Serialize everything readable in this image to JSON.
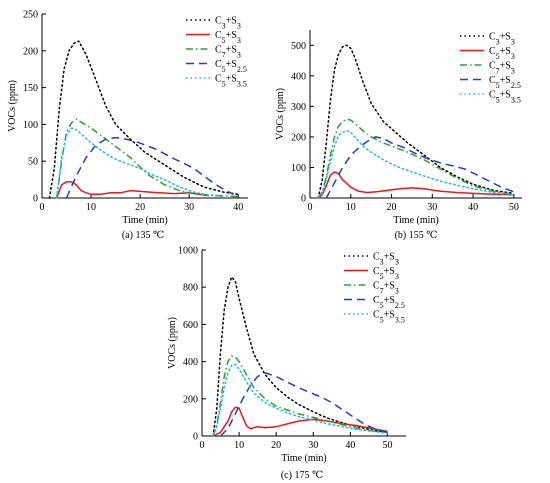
{
  "figure": {
    "panels": [
      {
        "caption": "(a) 135 ℃",
        "ylabel": "VOCs (ppm)",
        "xlabel": "Time (min)",
        "xlim": [
          0,
          42
        ],
        "ylim": [
          0,
          250
        ],
        "xticks": [
          0,
          10,
          20,
          30,
          40
        ],
        "yticks": [
          0,
          50,
          100,
          150,
          200,
          250
        ],
        "legend_position": "top-right"
      },
      {
        "caption": "(b) 155 ℃",
        "ylabel": "VOCs (ppm)",
        "xlabel": "Time (min)",
        "xlim": [
          0,
          52
        ],
        "ylim": [
          0,
          550
        ],
        "xticks": [
          0,
          10,
          20,
          30,
          40,
          50
        ],
        "yticks": [
          0,
          100,
          200,
          300,
          400,
          500
        ],
        "legend_position": "top-right"
      },
      {
        "caption": "(c) 175 ℃",
        "ylabel": "VOCs (ppm)",
        "xlabel": "Time (min)",
        "xlim": [
          0,
          55
        ],
        "ylim": [
          0,
          1000
        ],
        "xticks": [
          0,
          10,
          20,
          30,
          40,
          50
        ],
        "yticks": [
          0,
          200,
          400,
          600,
          800,
          1000
        ],
        "legend_position": "top-right"
      }
    ]
  },
  "chart_data": [
    {
      "type": "line",
      "title": "(a) 135 ℃",
      "xlabel": "Time (min)",
      "ylabel": "VOCs (ppm)",
      "xlim": [
        0,
        42
      ],
      "ylim": [
        0,
        250
      ],
      "series": [
        {
          "name": "C3+S3",
          "color": "#000000",
          "style": "dotted",
          "x": [
            1.5,
            2.5,
            3.5,
            4.5,
            5.5,
            6.5,
            7.5,
            9,
            11,
            13,
            15,
            18,
            21,
            25,
            29,
            33,
            37,
            40
          ],
          "y": [
            0,
            40,
            120,
            175,
            200,
            210,
            213,
            195,
            160,
            125,
            100,
            80,
            62,
            45,
            28,
            15,
            8,
            5
          ]
        },
        {
          "name": "C5+S3",
          "color": "#e41a1c",
          "style": "solid",
          "x": [
            3,
            4,
            5,
            6,
            7,
            8,
            9,
            10,
            12,
            14,
            16,
            18,
            20,
            22,
            24,
            27,
            30,
            32,
            34
          ],
          "y": [
            0,
            18,
            22,
            22,
            18,
            10,
            7,
            5,
            5,
            7,
            7,
            10,
            9,
            8,
            7,
            6,
            7,
            5,
            3
          ]
        },
        {
          "name": "C7+S3",
          "color": "#2ca02c",
          "style": "dashdot",
          "x": [
            3,
            4,
            5,
            6,
            7,
            8,
            10,
            12,
            14,
            16,
            18,
            20,
            22,
            25,
            28,
            31,
            34,
            37,
            40
          ],
          "y": [
            0,
            50,
            90,
            102,
            107,
            103,
            95,
            85,
            75,
            65,
            55,
            42,
            30,
            18,
            10,
            6,
            4,
            3,
            2
          ]
        },
        {
          "name": "C5+S2.5",
          "color": "#1f3fbf",
          "style": "dashed",
          "x": [
            5,
            7,
            9,
            11,
            13,
            15,
            17,
            19,
            21,
            23,
            25,
            27,
            29,
            31,
            33,
            35,
            37,
            39
          ],
          "y": [
            0,
            30,
            55,
            72,
            80,
            82,
            80,
            77,
            72,
            67,
            60,
            53,
            47,
            40,
            30,
            20,
            12,
            5
          ]
        },
        {
          "name": "C5+S3.5",
          "color": "#21b6ea",
          "style": "dotted",
          "x": [
            3,
            4,
            5,
            6,
            7,
            8,
            10,
            12,
            14,
            16,
            18,
            20,
            22,
            25,
            28,
            31,
            34,
            37
          ],
          "y": [
            0,
            55,
            85,
            95,
            93,
            87,
            75,
            65,
            56,
            50,
            45,
            40,
            33,
            25,
            15,
            8,
            4,
            2
          ]
        }
      ]
    },
    {
      "type": "line",
      "title": "(b) 155 ℃",
      "xlabel": "Time (min)",
      "ylabel": "VOCs (ppm)",
      "xlim": [
        0,
        52
      ],
      "ylim": [
        0,
        550
      ],
      "series": [
        {
          "name": "C3+S3",
          "color": "#000000",
          "style": "dotted",
          "x": [
            2,
            3,
            4,
            5,
            6,
            7,
            8,
            9,
            10,
            11,
            13,
            15,
            18,
            21,
            24,
            28,
            32,
            36,
            40,
            45,
            50
          ],
          "y": [
            0,
            60,
            180,
            320,
            420,
            470,
            495,
            500,
            490,
            460,
            380,
            310,
            250,
            215,
            180,
            140,
            100,
            70,
            45,
            25,
            15
          ]
        },
        {
          "name": "C5+S3",
          "color": "#e41a1c",
          "style": "solid",
          "x": [
            2,
            3,
            4,
            5,
            6,
            7,
            8,
            10,
            12,
            14,
            16,
            19,
            22,
            25,
            28,
            32,
            36,
            40,
            45,
            50
          ],
          "y": [
            0,
            10,
            40,
            75,
            85,
            80,
            60,
            35,
            22,
            18,
            20,
            25,
            30,
            33,
            30,
            22,
            18,
            15,
            12,
            10
          ]
        },
        {
          "name": "C7+S3",
          "color": "#2ca02c",
          "style": "dashdot",
          "x": [
            2,
            3,
            4,
            5,
            6,
            7,
            8,
            9,
            10,
            11,
            13,
            15,
            18,
            21,
            24,
            28,
            32,
            36,
            40,
            45,
            50
          ],
          "y": [
            0,
            20,
            70,
            140,
            200,
            235,
            250,
            258,
            255,
            245,
            220,
            200,
            180,
            165,
            150,
            125,
            95,
            65,
            40,
            22,
            12
          ]
        },
        {
          "name": "C5+S2.5",
          "color": "#1f3fbf",
          "style": "dashed",
          "x": [
            4,
            6,
            8,
            10,
            12,
            14,
            16,
            18,
            20,
            23,
            26,
            29,
            32,
            35,
            38,
            41,
            44,
            47,
            50
          ],
          "y": [
            0,
            50,
            100,
            140,
            165,
            185,
            200,
            195,
            180,
            165,
            145,
            128,
            115,
            105,
            95,
            75,
            55,
            35,
            20
          ]
        },
        {
          "name": "C5+S3.5",
          "color": "#21b6ea",
          "style": "dotted",
          "x": [
            2,
            3,
            4,
            5,
            6,
            7,
            8,
            9,
            10,
            11,
            13,
            15,
            18,
            21,
            24,
            28,
            32,
            36,
            40,
            45,
            50
          ],
          "y": [
            0,
            15,
            60,
            120,
            170,
            205,
            215,
            220,
            215,
            200,
            170,
            150,
            125,
            105,
            90,
            72,
            55,
            42,
            30,
            18,
            10
          ]
        }
      ]
    },
    {
      "type": "line",
      "title": "(c) 175 ℃",
      "xlabel": "Time (min)",
      "ylabel": "VOCs (ppm)",
      "xlim": [
        0,
        55
      ],
      "ylim": [
        0,
        1000
      ],
      "series": [
        {
          "name": "C3+S3",
          "color": "#000000",
          "style": "dotted",
          "x": [
            3,
            4,
            5,
            6,
            7,
            8,
            9,
            10,
            12,
            14,
            17,
            20,
            23,
            26,
            30,
            34,
            38,
            42,
            46,
            50
          ],
          "y": [
            0,
            150,
            450,
            680,
            800,
            855,
            830,
            740,
            580,
            440,
            330,
            260,
            210,
            170,
            130,
            95,
            70,
            50,
            30,
            20
          ]
        },
        {
          "name": "C5+S3",
          "color": "#e41a1c",
          "style": "solid",
          "x": [
            3,
            5,
            7,
            8,
            9,
            10,
            11,
            12,
            13,
            15,
            17,
            20,
            23,
            26,
            30,
            34,
            38,
            42,
            46,
            50
          ],
          "y": [
            0,
            20,
            80,
            130,
            155,
            150,
            100,
            55,
            40,
            50,
            45,
            50,
            65,
            80,
            90,
            80,
            65,
            55,
            40,
            25
          ]
        },
        {
          "name": "C7+S3",
          "color": "#2ca02c",
          "style": "dashdot",
          "x": [
            3,
            4,
            5,
            6,
            7,
            8,
            9,
            10,
            12,
            14,
            17,
            20,
            23,
            26,
            30,
            34,
            38,
            42,
            46,
            50
          ],
          "y": [
            0,
            60,
            180,
            320,
            400,
            430,
            425,
            400,
            330,
            260,
            200,
            160,
            140,
            120,
            100,
            80,
            60,
            40,
            28,
            20
          ]
        },
        {
          "name": "C5+S2.5",
          "color": "#1f3fbf",
          "style": "dashed",
          "x": [
            5,
            7,
            9,
            11,
            13,
            15,
            17,
            20,
            23,
            26,
            29,
            32,
            35,
            38,
            41,
            44,
            47,
            50
          ],
          "y": [
            0,
            40,
            120,
            200,
            270,
            320,
            340,
            320,
            290,
            260,
            235,
            210,
            180,
            140,
            100,
            60,
            35,
            20
          ]
        },
        {
          "name": "C5+S3.5",
          "color": "#21b6ea",
          "style": "dotted",
          "x": [
            3,
            4,
            5,
            6,
            7,
            8,
            9,
            10,
            12,
            14,
            17,
            20,
            23,
            26,
            30,
            34,
            38,
            42,
            46,
            50
          ],
          "y": [
            0,
            50,
            150,
            260,
            340,
            380,
            385,
            360,
            290,
            230,
            180,
            150,
            125,
            105,
            85,
            65,
            50,
            35,
            25,
            15
          ]
        }
      ]
    }
  ]
}
